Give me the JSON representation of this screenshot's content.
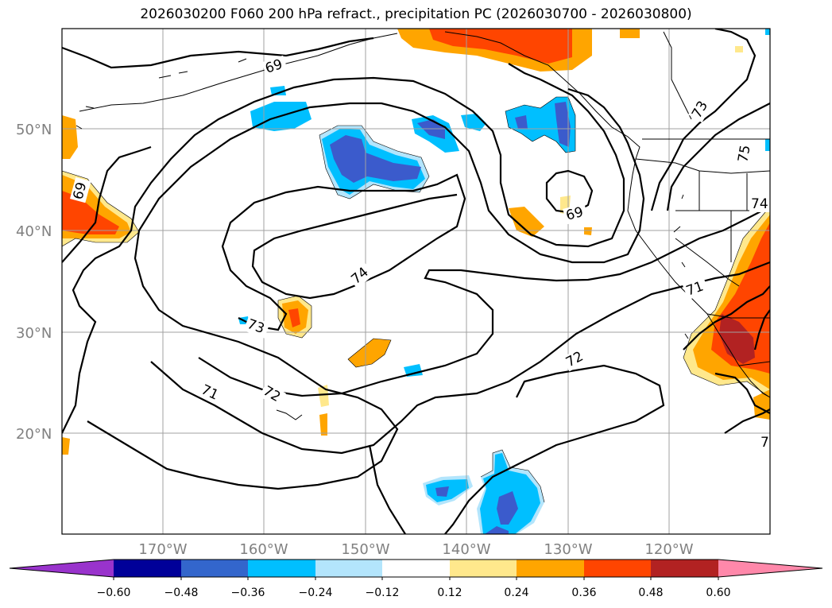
{
  "title": "2026030200 F060 200 hPa refract., precipitation PC (2026030700 - 2026030800)",
  "latitude_labels": [
    "50°N",
    "40°N",
    "30°N",
    "20°N"
  ],
  "longitude_labels": [
    "170°W",
    "160°W",
    "150°W",
    "140°W",
    "130°W",
    "120°W"
  ],
  "contour_labels": [
    "69",
    "69",
    "69",
    "71",
    "71",
    "72",
    "72",
    "73",
    "73",
    "74",
    "74",
    "75",
    "7"
  ],
  "colorbar": {
    "tick_labels": [
      "−0.60",
      "−0.48",
      "−0.36",
      "−0.24",
      "−0.12",
      "0.12",
      "0.24",
      "0.36",
      "0.48",
      "0.60"
    ],
    "colors": [
      "#9933cc",
      "#000099",
      "#3366cc",
      "#00bfff",
      "#b3e5fc",
      "#ffffff",
      "#ffe88c",
      "#ffa500",
      "#ff4500",
      "#b22222",
      "#ff88aa"
    ]
  },
  "palette": {
    "neg_strong": "#3b5bcc",
    "neg_mid": "#00bfff",
    "neg_weak": "#b3e5fc",
    "pos_weak": "#ffe88c",
    "pos_mid": "#ffa500",
    "pos_strong": "#ff4500",
    "pos_max": "#b22222"
  }
}
